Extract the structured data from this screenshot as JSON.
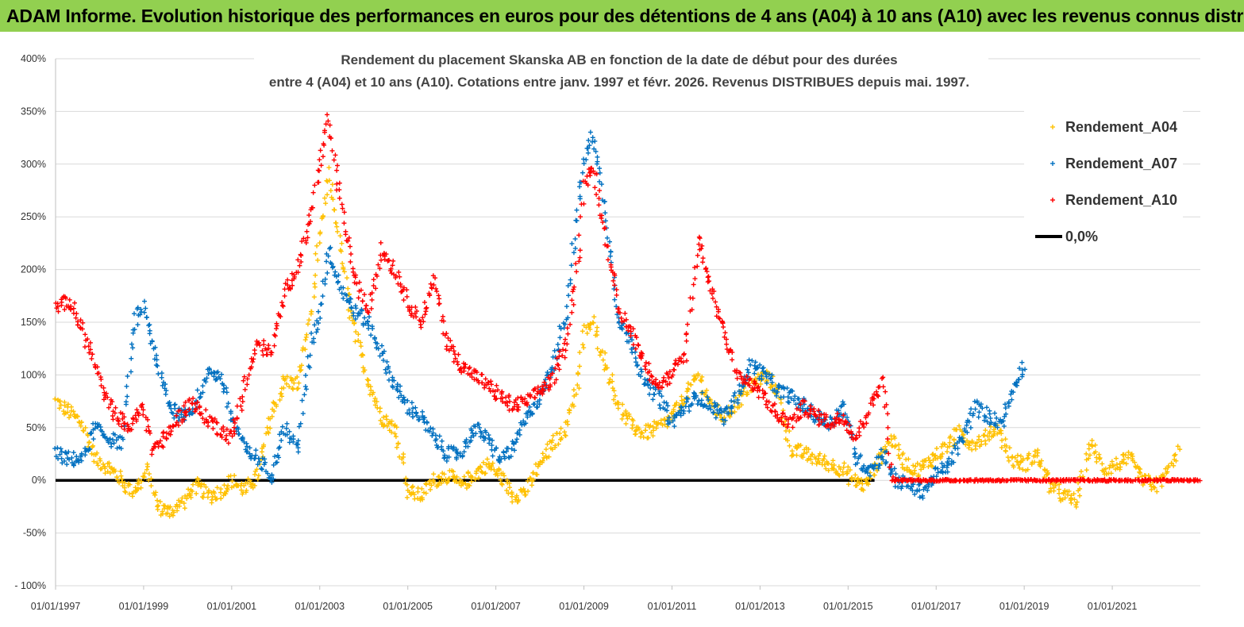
{
  "banner": {
    "title": "ADAM Informe. Evolution historique des performances en euros pour des détentions de 4 ans (A04) à 10 ans (A10) avec les revenus connus distribués"
  },
  "colors": {
    "banner_bg": "#92d050",
    "A04": "#ffc000",
    "A07": "#0070c0",
    "A10": "#ff0000",
    "zero": "#000000",
    "grid": "#d9d9d9"
  },
  "chart_data": {
    "type": "scatter",
    "title_lines": [
      "Rendement du placement Skanska AB en fonction de la date de début pour des durées",
      "entre 4 (A04) et 10 ans (A10).  Cotations entre janv. 1997 et févr. 2026. Revenus DISTRIBUES depuis mai. 1997."
    ],
    "xlim": [
      "1997-01-01",
      "2022-12-31"
    ],
    "ylim": [
      -100,
      400
    ],
    "y_ticks": [
      "400%",
      "350%",
      "300%",
      "250%",
      "200%",
      "150%",
      "100%",
      "50%",
      "0%",
      "-50%",
      "- 100%"
    ],
    "y_tick_values": [
      400,
      350,
      300,
      250,
      200,
      150,
      100,
      50,
      0,
      -50,
      -100
    ],
    "x_ticks": [
      "01/01/1997",
      "01/01/1999",
      "01/01/2001",
      "01/01/2003",
      "01/01/2005",
      "01/01/2007",
      "01/01/2009",
      "01/01/2011",
      "01/01/2013",
      "01/01/2015",
      "01/01/2017",
      "01/01/2019",
      "01/01/2021"
    ],
    "x_tick_years": [
      1997,
      1999,
      2001,
      2003,
      2005,
      2007,
      2009,
      2011,
      2013,
      2015,
      2017,
      2019,
      2021
    ],
    "grid": true,
    "legend_position": "top-right",
    "series": [
      {
        "name": "Rendement_A04",
        "marker": "+",
        "color": "#ffc000",
        "x": [
          1997.0,
          1997.3,
          1997.6,
          1997.9,
          1998.1,
          1998.4,
          1998.7,
          1998.9,
          1999.1,
          1999.3,
          1999.6,
          1999.9,
          2000.2,
          2000.5,
          2000.8,
          2001.0,
          2001.3,
          2001.6,
          2001.9,
          2002.2,
          2002.5,
          2002.8,
          2003.0,
          2003.2,
          2003.4,
          2003.7,
          2003.9,
          2004.1,
          2004.4,
          2004.7,
          2004.9,
          2005.0,
          2005.3,
          2005.6,
          2005.9,
          2006.2,
          2006.5,
          2006.8,
          2007.1,
          2007.4,
          2007.7,
          2008.0,
          2008.3,
          2008.6,
          2008.9,
          2009.0,
          2009.2,
          2009.5,
          2009.8,
          2010.1,
          2010.4,
          2010.7,
          2011.0,
          2011.3,
          2011.6,
          2011.9,
          2012.2,
          2012.5,
          2012.8,
          2013.1,
          2013.4,
          2013.7,
          2014.0,
          2014.3,
          2014.6,
          2014.9,
          2015.1,
          2015.4,
          2015.7,
          2016.0,
          2016.3,
          2016.6,
          2016.9,
          2017.2,
          2017.5,
          2017.8,
          2018.1,
          2018.4,
          2018.7,
          2019.0,
          2019.3,
          2019.6,
          2019.9,
          2020.2,
          2020.5,
          2020.8,
          2021.1,
          2021.4,
          2021.7,
          2022.0,
          2022.3,
          2022.5
        ],
        "y": [
          75,
          65,
          55,
          20,
          15,
          5,
          -10,
          -5,
          10,
          -25,
          -30,
          -20,
          -5,
          -15,
          -10,
          0,
          -10,
          5,
          60,
          95,
          90,
          160,
          230,
          290,
          240,
          160,
          125,
          95,
          60,
          50,
          20,
          -10,
          -15,
          0,
          5,
          -5,
          5,
          15,
          5,
          -15,
          -10,
          15,
          35,
          50,
          100,
          140,
          150,
          110,
          70,
          50,
          45,
          50,
          60,
          80,
          100,
          70,
          60,
          75,
          90,
          100,
          85,
          30,
          25,
          20,
          15,
          10,
          0,
          -5,
          20,
          40,
          15,
          10,
          20,
          30,
          45,
          35,
          40,
          50,
          20,
          15,
          25,
          -5,
          -15,
          -20,
          35,
          10,
          15,
          20,
          0,
          -5,
          10,
          30
        ]
      },
      {
        "name": "Rendement_A07",
        "marker": "+",
        "color": "#0070c0",
        "x": [
          1997.0,
          1997.3,
          1997.6,
          1997.9,
          1998.2,
          1998.5,
          1998.8,
          1999.0,
          1999.3,
          1999.6,
          1999.9,
          2000.2,
          2000.5,
          2000.8,
          2001.0,
          2001.3,
          2001.6,
          2001.9,
          2002.2,
          2002.5,
          2002.8,
          2003.0,
          2003.2,
          2003.5,
          2003.8,
          2004.1,
          2004.4,
          2004.7,
          2005.0,
          2005.3,
          2005.6,
          2005.9,
          2006.2,
          2006.5,
          2006.8,
          2007.1,
          2007.4,
          2007.7,
          2008.0,
          2008.3,
          2008.6,
          2008.9,
          2009.0,
          2009.2,
          2009.5,
          2009.8,
          2010.1,
          2010.4,
          2010.7,
          2011.0,
          2011.3,
          2011.6,
          2011.9,
          2012.2,
          2012.5,
          2012.8,
          2013.1,
          2013.4,
          2013.7,
          2014.0,
          2014.3,
          2014.6,
          2014.9,
          2015.2,
          2015.5,
          2015.8,
          2016.1,
          2016.4,
          2016.7,
          2017.0,
          2017.3,
          2017.6,
          2017.9,
          2018.2,
          2018.5,
          2018.8,
          2019.0
        ],
        "y": [
          25,
          20,
          20,
          50,
          40,
          35,
          150,
          165,
          110,
          70,
          60,
          75,
          105,
          95,
          60,
          30,
          20,
          5,
          50,
          30,
          130,
          160,
          220,
          180,
          160,
          150,
          120,
          90,
          70,
          60,
          40,
          25,
          25,
          50,
          40,
          20,
          30,
          60,
          80,
          110,
          160,
          270,
          300,
          330,
          250,
          150,
          130,
          90,
          80,
          55,
          70,
          80,
          70,
          60,
          80,
          110,
          100,
          85,
          80,
          70,
          60,
          55,
          70,
          20,
          10,
          25,
          0,
          -5,
          -10,
          5,
          15,
          40,
          70,
          60,
          55,
          95,
          110
        ]
      },
      {
        "name": "Rendement_A10",
        "marker": "+",
        "color": "#ff0000",
        "x": [
          1997.0,
          1997.3,
          1997.6,
          1997.9,
          1998.1,
          1998.4,
          1998.7,
          1999.0,
          1999.2,
          1999.5,
          1999.8,
          2000.1,
          2000.4,
          2000.7,
          2001.0,
          2001.3,
          2001.6,
          2001.9,
          2002.2,
          2002.5,
          2002.8,
          2003.0,
          2003.2,
          2003.5,
          2003.8,
          2004.1,
          2004.4,
          2004.7,
          2005.0,
          2005.3,
          2005.6,
          2005.9,
          2006.2,
          2006.5,
          2006.8,
          2007.1,
          2007.4,
          2007.7,
          2008.0,
          2008.3,
          2008.6,
          2008.9,
          2009.0,
          2009.2,
          2009.5,
          2009.8,
          2010.1,
          2010.4,
          2010.7,
          2011.0,
          2011.3,
          2011.6,
          2011.9,
          2012.2,
          2012.5,
          2012.8,
          2013.1,
          2013.4,
          2013.7,
          2014.0,
          2014.3,
          2014.6,
          2014.9,
          2015.2,
          2015.5,
          2015.8,
          2016.0,
          2016.5,
          2017.0,
          2017.5,
          2018.0,
          2018.5,
          2019.0,
          2019.5,
          2020.0,
          2020.5,
          2021.0,
          2021.5,
          2022.0,
          2022.5,
          2022.99
        ],
        "y": [
          165,
          170,
          145,
          110,
          80,
          60,
          50,
          70,
          30,
          40,
          60,
          75,
          60,
          50,
          40,
          90,
          130,
          120,
          180,
          200,
          250,
          300,
          340,
          260,
          190,
          160,
          220,
          200,
          170,
          150,
          190,
          130,
          110,
          100,
          90,
          80,
          70,
          75,
          85,
          95,
          130,
          220,
          280,
          300,
          230,
          160,
          140,
          110,
          90,
          100,
          120,
          230,
          180,
          140,
          100,
          90,
          80,
          60,
          55,
          70,
          60,
          55,
          60,
          40,
          70,
          95,
          0,
          0,
          0,
          0,
          0,
          0,
          0,
          0,
          0,
          0,
          0,
          0,
          0,
          0,
          0
        ]
      },
      {
        "name": "0,0%",
        "marker": "line",
        "color": "#000000",
        "x": [
          1997.0,
          2015.6
        ],
        "y": [
          0,
          0
        ]
      }
    ]
  }
}
